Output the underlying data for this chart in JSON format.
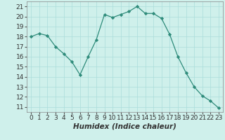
{
  "x": [
    0,
    1,
    2,
    3,
    4,
    5,
    6,
    7,
    8,
    9,
    10,
    11,
    12,
    13,
    14,
    15,
    16,
    17,
    18,
    19,
    20,
    21,
    22,
    23
  ],
  "y": [
    18.0,
    18.3,
    18.1,
    17.0,
    16.3,
    15.5,
    14.2,
    16.0,
    17.7,
    20.2,
    19.9,
    20.2,
    20.5,
    21.0,
    20.3,
    20.3,
    19.8,
    18.2,
    16.0,
    14.4,
    13.0,
    12.1,
    11.6,
    10.9
  ],
  "xlabel": "Humidex (Indice chaleur)",
  "xlim": [
    -0.5,
    23.5
  ],
  "ylim": [
    10.5,
    21.5
  ],
  "yticks": [
    11,
    12,
    13,
    14,
    15,
    16,
    17,
    18,
    19,
    20,
    21
  ],
  "xticks": [
    0,
    1,
    2,
    3,
    4,
    5,
    6,
    7,
    8,
    9,
    10,
    11,
    12,
    13,
    14,
    15,
    16,
    17,
    18,
    19,
    20,
    21,
    22,
    23
  ],
  "line_color": "#2e8b7a",
  "marker_color": "#2e8b7a",
  "bg_color": "#cff0eb",
  "grid_color": "#aaddda",
  "label_fontsize": 7.5,
  "tick_fontsize": 6.5
}
